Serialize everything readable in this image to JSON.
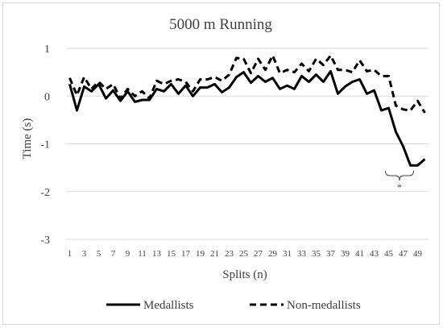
{
  "chart_data": {
    "type": "line",
    "title": "5000 m Running",
    "xlabel": "Splits (n)",
    "ylabel": "Time (s)",
    "ylim": [
      -3,
      1
    ],
    "yticks": [
      1,
      0,
      -1,
      -2,
      -3
    ],
    "x": [
      1,
      2,
      3,
      4,
      5,
      6,
      7,
      8,
      9,
      10,
      11,
      12,
      13,
      14,
      15,
      16,
      17,
      18,
      19,
      20,
      21,
      22,
      23,
      24,
      25,
      26,
      27,
      28,
      29,
      30,
      31,
      32,
      33,
      34,
      35,
      36,
      37,
      38,
      39,
      40,
      41,
      42,
      43,
      44,
      45,
      46,
      47,
      48,
      49,
      50
    ],
    "xtick_labels": [
      "1",
      "3",
      "5",
      "7",
      "9",
      "11",
      "13",
      "15",
      "17",
      "19",
      "21",
      "23",
      "25",
      "27",
      "29",
      "31",
      "33",
      "35",
      "37",
      "39",
      "41",
      "43",
      "45",
      "47",
      "49"
    ],
    "grid": "horizontal",
    "legend_position": "bottom",
    "series": [
      {
        "name": "Medallists",
        "line_style": "solid",
        "color": "#000000",
        "values": [
          0.25,
          -0.3,
          0.2,
          0.1,
          0.25,
          -0.05,
          0.12,
          -0.1,
          0.1,
          -0.12,
          -0.08,
          -0.08,
          0.15,
          0.1,
          0.25,
          0.05,
          0.22,
          0.0,
          0.18,
          0.18,
          0.25,
          0.08,
          0.18,
          0.4,
          0.5,
          0.28,
          0.42,
          0.3,
          0.38,
          0.15,
          0.22,
          0.15,
          0.42,
          0.3,
          0.45,
          0.3,
          0.52,
          0.05,
          0.2,
          0.3,
          0.35,
          0.05,
          0.12,
          -0.3,
          -0.25,
          -0.75,
          -1.05,
          -1.45,
          -1.45,
          -1.32
        ]
      },
      {
        "name": "Non-medallists",
        "line_style": "dashed",
        "color": "#000000",
        "values": [
          0.38,
          0.02,
          0.4,
          0.15,
          0.3,
          0.15,
          0.25,
          -0.05,
          0.15,
          0.0,
          0.1,
          -0.05,
          0.32,
          0.25,
          0.32,
          0.35,
          0.3,
          0.1,
          0.35,
          0.35,
          0.4,
          0.32,
          0.45,
          0.8,
          0.78,
          0.48,
          0.78,
          0.55,
          0.85,
          0.48,
          0.55,
          0.5,
          0.68,
          0.52,
          0.78,
          0.65,
          0.85,
          0.55,
          0.55,
          0.5,
          0.75,
          0.52,
          0.55,
          0.42,
          0.42,
          -0.2,
          -0.28,
          -0.3,
          -0.1,
          -0.35
        ]
      }
    ],
    "annotations": [
      {
        "text": "*",
        "bracket_from_x": 45,
        "bracket_to_x": 48,
        "y_below": -1.6
      }
    ]
  }
}
